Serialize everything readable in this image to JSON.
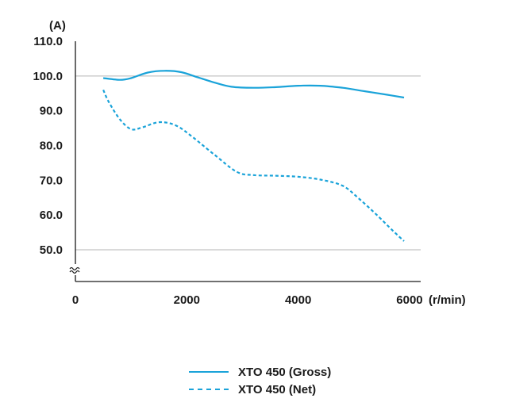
{
  "chart_data": {
    "type": "line",
    "y_unit": "(A)",
    "x_unit": "(r/min)",
    "y_ticks": [
      "50.0",
      "60.0",
      "70.0",
      "80.0",
      "90.0",
      "100.0",
      "110.0"
    ],
    "y_tick_values": [
      50,
      60,
      70,
      80,
      90,
      100,
      110
    ],
    "x_ticks": [
      "0",
      "2000",
      "4000",
      "6000"
    ],
    "x_tick_values": [
      0,
      2000,
      4000,
      6000
    ],
    "xlim": [
      0,
      6200
    ],
    "ylim": [
      50,
      110
    ],
    "axis_break": true,
    "gridlines_y": [
      50,
      100
    ],
    "series": [
      {
        "name": "XTO 450 (Gross)",
        "style": "solid",
        "color": "#1aa3d9",
        "x": [
          500,
          800,
          1000,
          1300,
          1600,
          1900,
          2200,
          2500,
          2800,
          3200,
          3600,
          4000,
          4400,
          4800,
          5200,
          5600,
          5900
        ],
        "y": [
          99.4,
          98.9,
          99.4,
          101.0,
          101.5,
          101.1,
          99.6,
          98.1,
          96.9,
          96.6,
          96.8,
          97.2,
          97.2,
          96.6,
          95.6,
          94.6,
          93.8
        ]
      },
      {
        "name": "XTO 450 (Net)",
        "style": "dashed",
        "color": "#1aa3d9",
        "x": [
          500,
          600,
          800,
          1000,
          1200,
          1500,
          1800,
          2100,
          2500,
          2900,
          3200,
          3600,
          4000,
          4400,
          4800,
          5100,
          5400,
          5700,
          5900
        ],
        "y": [
          96.0,
          92.5,
          87.5,
          84.7,
          85.2,
          86.7,
          85.8,
          82.5,
          77.3,
          72.4,
          71.5,
          71.3,
          71.0,
          70.2,
          68.4,
          64.6,
          60.2,
          55.5,
          52.5
        ]
      }
    ]
  },
  "legend": {
    "items": [
      {
        "label": "XTO 450 (Gross)",
        "style": "solid"
      },
      {
        "label": "XTO 450 (Net)",
        "style": "dashed"
      }
    ]
  }
}
